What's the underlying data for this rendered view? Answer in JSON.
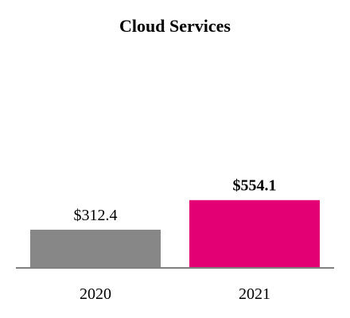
{
  "chart_data": {
    "type": "bar",
    "title": "Cloud Services",
    "categories": [
      "2020",
      "2021"
    ],
    "values": [
      312.4,
      554.1
    ],
    "data_labels": [
      "$312.4",
      "$554.1"
    ],
    "data_label_bold": [
      false,
      true
    ],
    "colors": [
      "#878787",
      "#e20074"
    ],
    "axis_color": "#808080",
    "ylim": [
      0,
      1800
    ],
    "xlabel": "",
    "ylabel": "",
    "grid": false,
    "legend": "none"
  }
}
